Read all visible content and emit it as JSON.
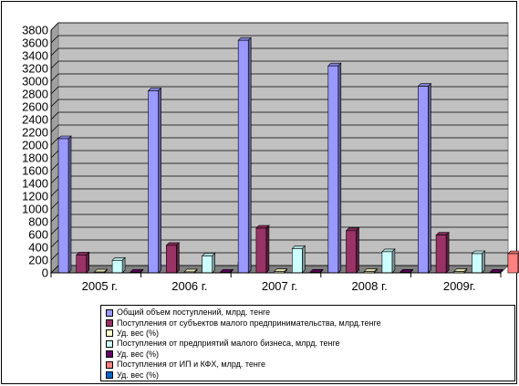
{
  "chart_data": {
    "type": "bar",
    "categories": [
      "2005 г.",
      "2006 г.",
      "2007 г.",
      "2008 г.",
      "2009г."
    ],
    "ylim": [
      0,
      3800
    ],
    "yticks": [
      0,
      200,
      400,
      600,
      800,
      1000,
      1200,
      1400,
      1600,
      1800,
      2000,
      2200,
      2400,
      2600,
      2800,
      3000,
      3200,
      3400,
      3600,
      3800
    ],
    "grid": true,
    "legend_position": "bottom",
    "series": [
      {
        "name": "Общий объем поступлений, млрд. тенге",
        "color": "#9999ff",
        "values": [
          2100,
          2850,
          3640,
          3240,
          2920
        ]
      },
      {
        "name": "Поступления от субъектов малого предпринимательства,  млрд.тенге",
        "color": "#993366",
        "values": [
          280,
          430,
          700,
          660,
          590
        ]
      },
      {
        "name": "Уд. вес (%)",
        "color": "#ffffcc",
        "values": [
          13,
          15,
          19,
          20,
          20
        ]
      },
      {
        "name": "Поступления от предприятий малого бизнеса, млрд. тенге",
        "color": "#ccffff",
        "values": [
          195,
          265,
          380,
          330,
          300
        ]
      },
      {
        "name": "Уд. вес (%)",
        "color": "#660066",
        "values": [
          9,
          9,
          10,
          10,
          10
        ]
      },
      {
        "name": "Поступления от ИП и КФХ, млрд. тенге",
        "color": "#ff8080",
        "values": [
          85,
          165,
          320,
          315,
          300
        ]
      },
      {
        "name": "Уд. вес (%)",
        "color": "#0066cc",
        "values": [
          4,
          6,
          9,
          10,
          10
        ]
      }
    ]
  }
}
